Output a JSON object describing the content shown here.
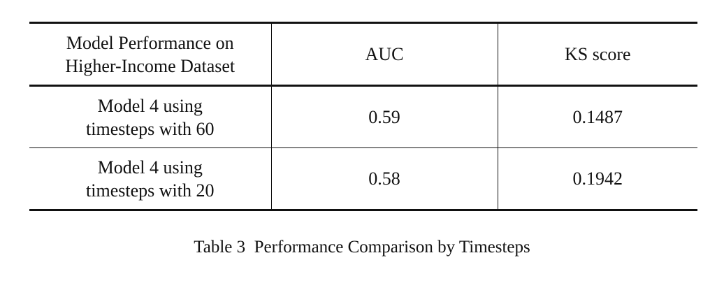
{
  "table": {
    "header": {
      "col1_line1": "Model Performance on",
      "col1_line2": "Higher-Income Dataset",
      "col2": "AUC",
      "col3": "KS score"
    },
    "rows": [
      {
        "model_line1": "Model 4 using",
        "model_line2": "timesteps with 60",
        "auc": "0.59",
        "ks": "0.1487"
      },
      {
        "model_line1": "Model 4 using",
        "model_line2": "timesteps with 20",
        "auc": "0.58",
        "ks": "0.1942"
      }
    ]
  },
  "caption": "Table 3  Performance Comparison by Timesteps"
}
